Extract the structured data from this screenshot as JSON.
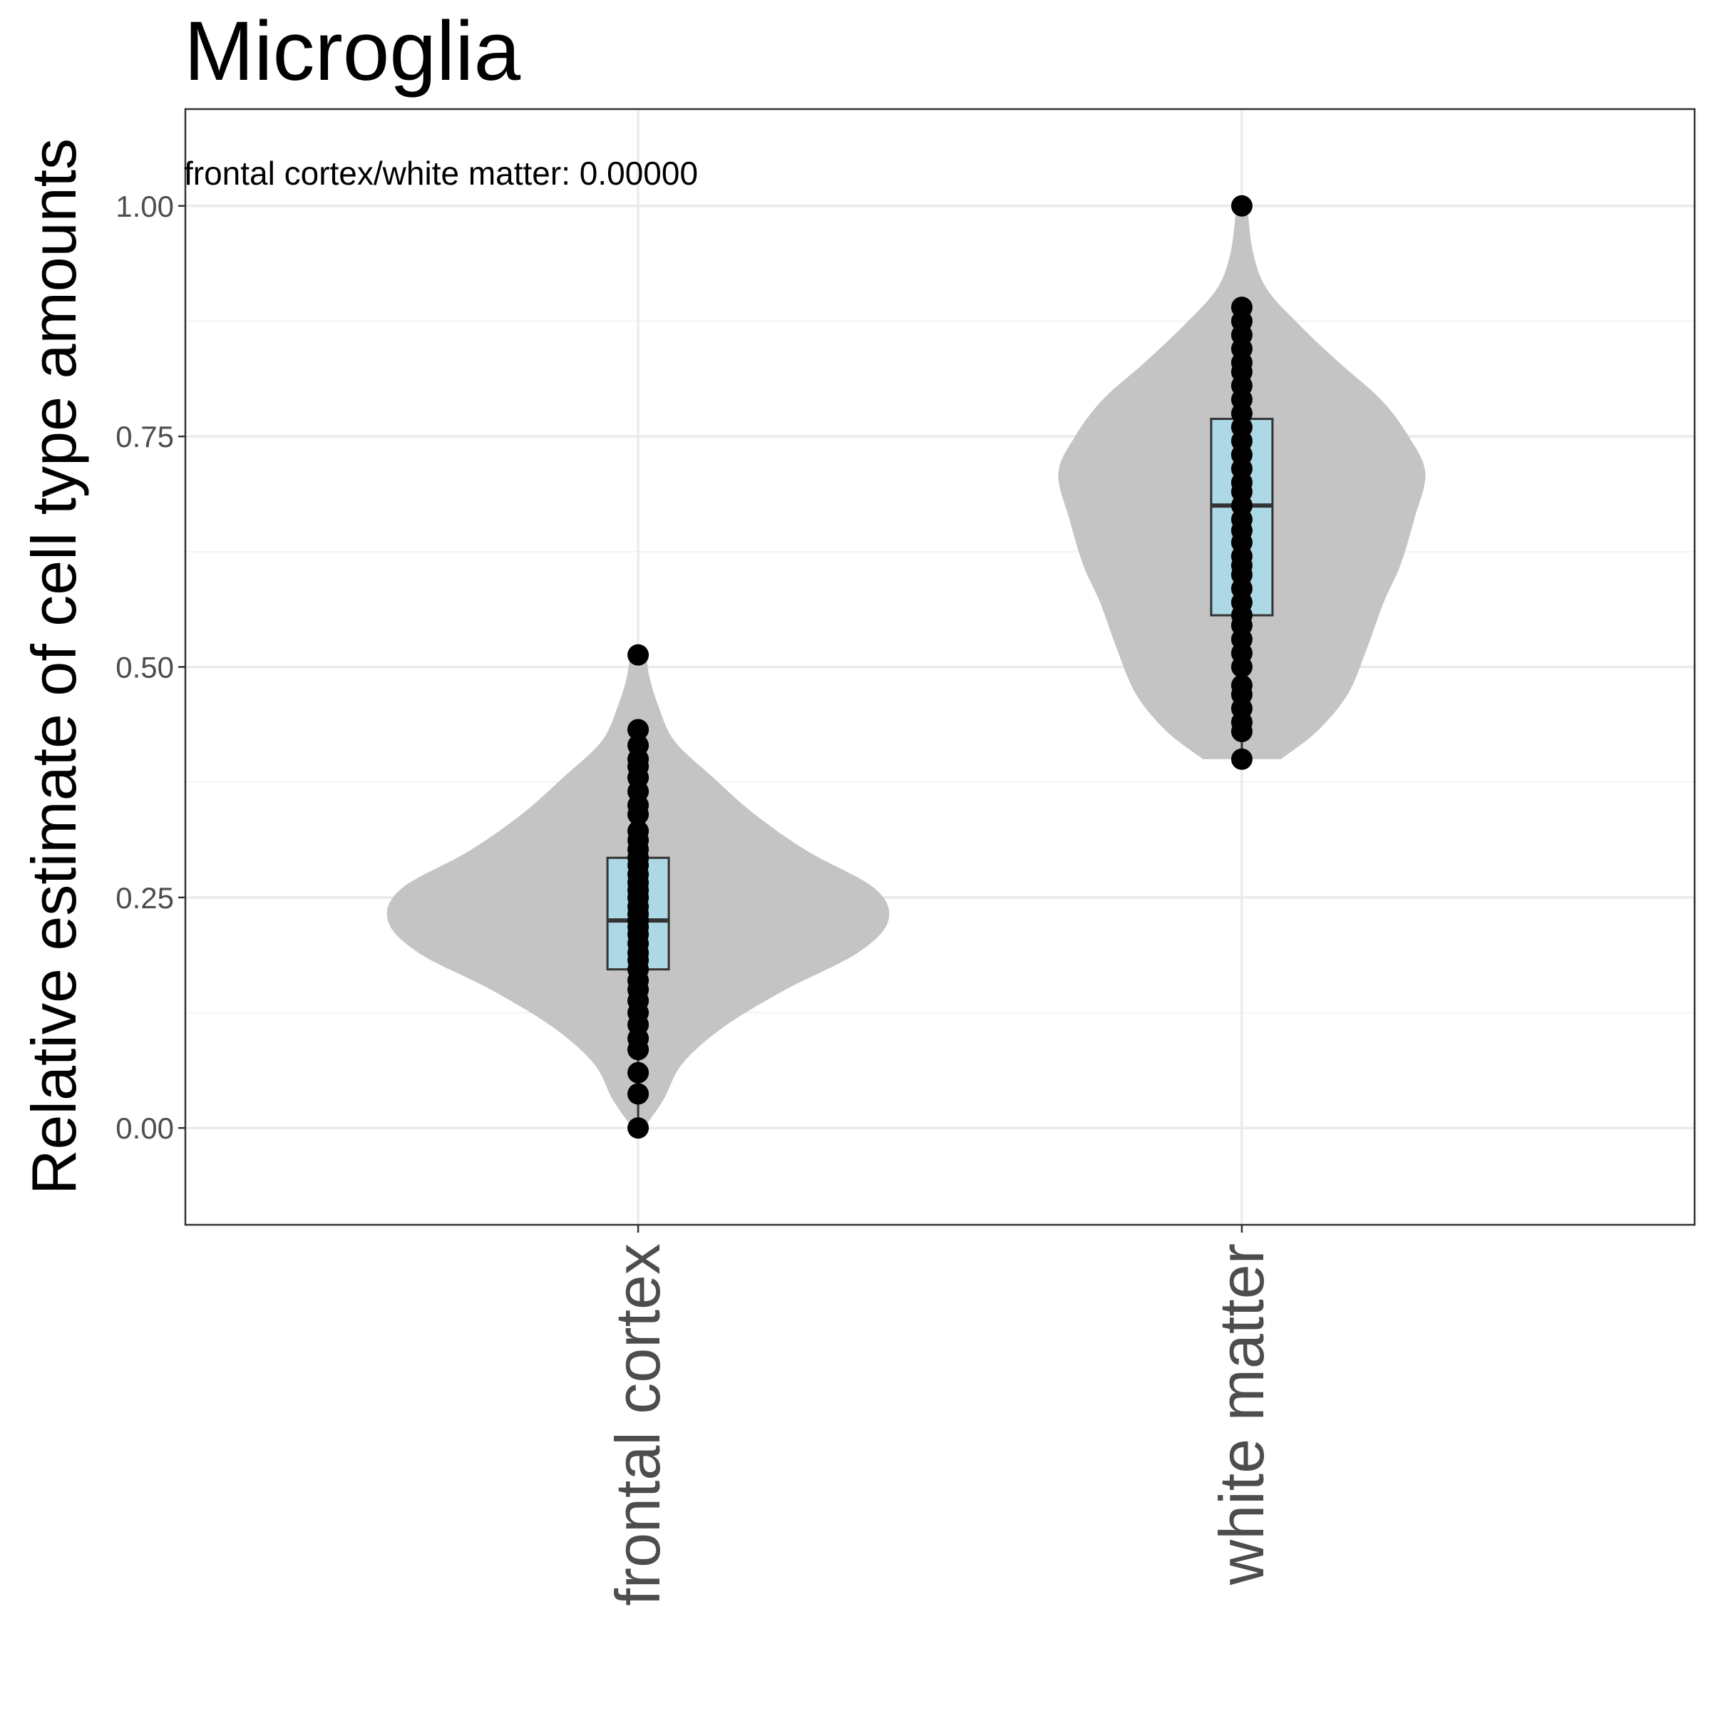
{
  "chart_data": {
    "type": "violin",
    "title": "Microglia",
    "xlabel": "",
    "ylabel": "Relative estimate of cell type amounts",
    "annotation": "frontal cortex/white matter: 0.00000",
    "ylim": [
      -0.105,
      1.105
    ],
    "yticks": [
      0.0,
      0.25,
      0.5,
      0.75,
      1.0
    ],
    "ytick_labels": [
      "0.00",
      "0.25",
      "0.50",
      "0.75",
      "1.00"
    ],
    "categories": [
      "frontal cortex",
      "white matter"
    ],
    "grid": true,
    "colors": {
      "violin_fill": "#c4c4c4",
      "box_fill": "#add8e6",
      "box_stroke": "#333333",
      "point": "#000000",
      "grid_major": "#ebebeb",
      "grid_minor": "#f3f3f3",
      "panel_border": "#333333"
    },
    "groups": [
      {
        "name": "frontal cortex",
        "box": {
          "lower_whisker": 0.0,
          "q1": 0.172,
          "median": 0.225,
          "q3": 0.293,
          "upper_whisker": 0.432,
          "outliers": [
            0.513
          ]
        },
        "violin": [
          {
            "y": 0.0,
            "w": 0.02
          },
          {
            "y": 0.03,
            "w": 0.09
          },
          {
            "y": 0.07,
            "w": 0.16
          },
          {
            "y": 0.11,
            "w": 0.31
          },
          {
            "y": 0.15,
            "w": 0.53
          },
          {
            "y": 0.19,
            "w": 0.79
          },
          {
            "y": 0.225,
            "w": 0.9
          },
          {
            "y": 0.26,
            "w": 0.85
          },
          {
            "y": 0.3,
            "w": 0.61
          },
          {
            "y": 0.34,
            "w": 0.42
          },
          {
            "y": 0.38,
            "w": 0.27
          },
          {
            "y": 0.42,
            "w": 0.13
          },
          {
            "y": 0.46,
            "w": 0.07
          },
          {
            "y": 0.49,
            "w": 0.04
          },
          {
            "y": 0.513,
            "w": 0.03
          }
        ],
        "points": [
          0.0,
          0.037,
          0.06,
          0.085,
          0.097,
          0.112,
          0.125,
          0.138,
          0.15,
          0.16,
          0.172,
          0.182,
          0.19,
          0.2,
          0.21,
          0.218,
          0.225,
          0.232,
          0.24,
          0.25,
          0.258,
          0.266,
          0.275,
          0.285,
          0.293,
          0.302,
          0.312,
          0.322,
          0.34,
          0.35,
          0.365,
          0.38,
          0.392,
          0.4,
          0.415,
          0.432,
          0.513
        ]
      },
      {
        "name": "white matter",
        "box": {
          "lower_whisker": 0.4,
          "q1": 0.556,
          "median": 0.675,
          "q3": 0.769,
          "upper_whisker": 0.89,
          "outliers": [
            1.0
          ]
        },
        "violin": [
          {
            "y": 0.4,
            "w": 0.14
          },
          {
            "y": 0.43,
            "w": 0.27
          },
          {
            "y": 0.47,
            "w": 0.38
          },
          {
            "y": 0.52,
            "w": 0.45
          },
          {
            "y": 0.57,
            "w": 0.51
          },
          {
            "y": 0.61,
            "w": 0.57
          },
          {
            "y": 0.66,
            "w": 0.62
          },
          {
            "y": 0.71,
            "w": 0.66
          },
          {
            "y": 0.75,
            "w": 0.6
          },
          {
            "y": 0.79,
            "w": 0.5
          },
          {
            "y": 0.83,
            "w": 0.35
          },
          {
            "y": 0.87,
            "w": 0.21
          },
          {
            "y": 0.91,
            "w": 0.09
          },
          {
            "y": 0.95,
            "w": 0.04
          },
          {
            "y": 1.0,
            "w": 0.02
          }
        ],
        "points": [
          0.4,
          0.43,
          0.44,
          0.455,
          0.47,
          0.48,
          0.5,
          0.515,
          0.53,
          0.545,
          0.556,
          0.57,
          0.585,
          0.6,
          0.61,
          0.62,
          0.635,
          0.648,
          0.66,
          0.675,
          0.69,
          0.7,
          0.715,
          0.73,
          0.745,
          0.76,
          0.775,
          0.79,
          0.805,
          0.82,
          0.83,
          0.845,
          0.86,
          0.875,
          0.89,
          1.0
        ]
      }
    ]
  }
}
